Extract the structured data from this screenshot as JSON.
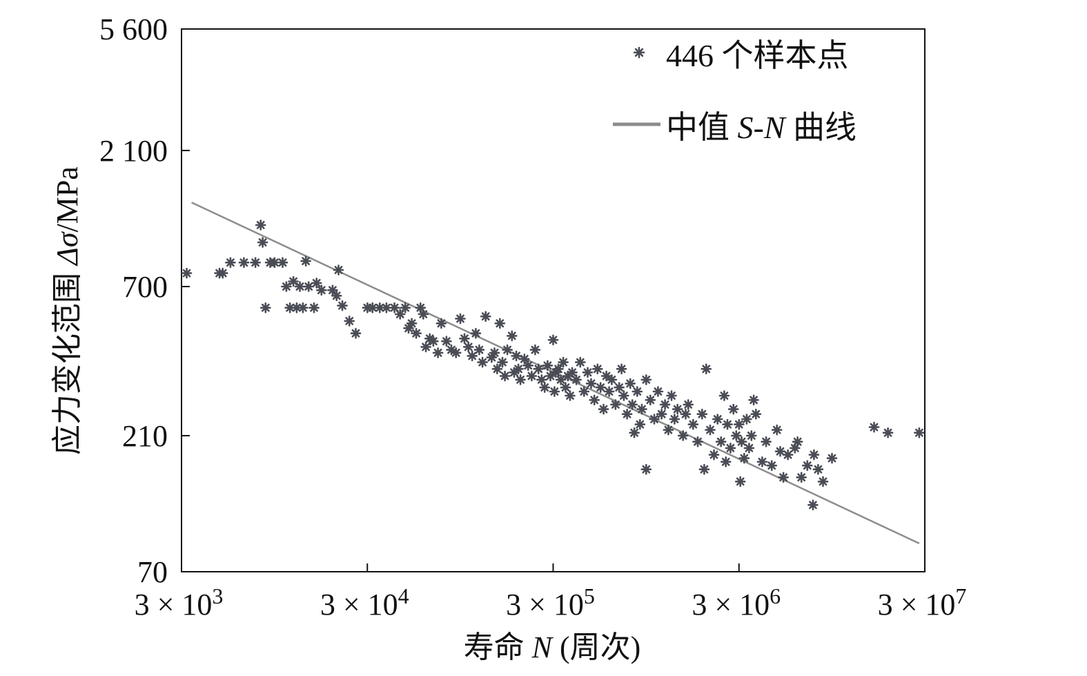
{
  "chart_data": {
    "type": "scatter",
    "title": "",
    "xlabel_prefix": "寿命",
    "xlabel_var": "N",
    "xlabel_suffix": "(周次)",
    "ylabel_prefix": "应力变化范围",
    "ylabel_var": "Δσ",
    "ylabel_suffix": "/MPa",
    "x_scale": "log",
    "y_scale": "log",
    "xlim": [
      3000,
      30000000
    ],
    "ylim": [
      70,
      5600
    ],
    "x_ticks": [
      {
        "value": 3000,
        "mantissa": "3 × 10",
        "exp": "3"
      },
      {
        "value": 30000,
        "mantissa": "3 × 10",
        "exp": "4"
      },
      {
        "value": 300000,
        "mantissa": "3 × 10",
        "exp": "5"
      },
      {
        "value": 3000000,
        "mantissa": "3 × 10",
        "exp": "6"
      },
      {
        "value": 30000000,
        "mantissa": "3 × 10",
        "exp": "7"
      }
    ],
    "y_ticks": [
      {
        "value": 5600,
        "label": "5 600"
      },
      {
        "value": 2100,
        "label": "2 100"
      },
      {
        "value": 700,
        "label": "700"
      },
      {
        "value": 210,
        "label": "210"
      },
      {
        "value": 70,
        "label": "70"
      }
    ],
    "legend": {
      "position": "top-right",
      "scatter_label": "446 个样本点",
      "line_label_prefix": "中值 ",
      "line_label_var": "S",
      "line_label_dash": "-",
      "line_label_var2": "N",
      "line_label_suffix": " 曲线"
    },
    "colors": {
      "points": "#4a4d55",
      "line": "#8c8c8c",
      "axes": "#111111"
    },
    "series": [
      {
        "name": "446 个样本点",
        "kind": "scatter",
        "marker": "star",
        "sample_count": 446,
        "points": [
          [
            3200,
            780
          ],
          [
            4800,
            780
          ],
          [
            5000,
            780
          ],
          [
            5500,
            850
          ],
          [
            6500,
            850
          ],
          [
            7500,
            850
          ],
          [
            8000,
            1150
          ],
          [
            8200,
            1000
          ],
          [
            8500,
            590
          ],
          [
            9000,
            850
          ],
          [
            9500,
            850
          ],
          [
            10500,
            850
          ],
          [
            11000,
            700
          ],
          [
            11500,
            590
          ],
          [
            12000,
            730
          ],
          [
            12500,
            590
          ],
          [
            13000,
            700
          ],
          [
            13500,
            590
          ],
          [
            14000,
            860
          ],
          [
            14500,
            700
          ],
          [
            15500,
            590
          ],
          [
            16000,
            720
          ],
          [
            17000,
            680
          ],
          [
            19500,
            680
          ],
          [
            20500,
            650
          ],
          [
            21000,
            800
          ],
          [
            22000,
            600
          ],
          [
            24000,
            530
          ],
          [
            26000,
            480
          ],
          [
            30000,
            590
          ],
          [
            32000,
            590
          ],
          [
            35000,
            590
          ],
          [
            38000,
            590
          ],
          [
            42000,
            590
          ],
          [
            45000,
            560
          ],
          [
            48000,
            590
          ],
          [
            50000,
            500
          ],
          [
            52000,
            520
          ],
          [
            55000,
            480
          ],
          [
            58000,
            590
          ],
          [
            60000,
            560
          ],
          [
            62000,
            430
          ],
          [
            65000,
            460
          ],
          [
            68000,
            450
          ],
          [
            72000,
            410
          ],
          [
            75000,
            520
          ],
          [
            80000,
            450
          ],
          [
            85000,
            420
          ],
          [
            90000,
            410
          ],
          [
            95000,
            540
          ],
          [
            100000,
            460
          ],
          [
            105000,
            430
          ],
          [
            110000,
            400
          ],
          [
            115000,
            480
          ],
          [
            120000,
            420
          ],
          [
            125000,
            380
          ],
          [
            130000,
            550
          ],
          [
            140000,
            395
          ],
          [
            145000,
            410
          ],
          [
            150000,
            360
          ],
          [
            155000,
            520
          ],
          [
            160000,
            380
          ],
          [
            165000,
            340
          ],
          [
            170000,
            420
          ],
          [
            180000,
            470
          ],
          [
            185000,
            350
          ],
          [
            190000,
            400
          ],
          [
            195000,
            360
          ],
          [
            200000,
            330
          ],
          [
            210000,
            390
          ],
          [
            220000,
            370
          ],
          [
            230000,
            340
          ],
          [
            240000,
            420
          ],
          [
            250000,
            360
          ],
          [
            260000,
            330
          ],
          [
            270000,
            310
          ],
          [
            280000,
            370
          ],
          [
            290000,
            340
          ],
          [
            300000,
            455
          ],
          [
            305000,
            300
          ],
          [
            310000,
            350
          ],
          [
            320000,
            360
          ],
          [
            330000,
            330
          ],
          [
            340000,
            380
          ],
          [
            350000,
            310
          ],
          [
            360000,
            340
          ],
          [
            370000,
            290
          ],
          [
            380000,
            350
          ],
          [
            400000,
            330
          ],
          [
            420000,
            380
          ],
          [
            440000,
            300
          ],
          [
            460000,
            350
          ],
          [
            480000,
            320
          ],
          [
            500000,
            280
          ],
          [
            520000,
            360
          ],
          [
            540000,
            310
          ],
          [
            560000,
            260
          ],
          [
            580000,
            340
          ],
          [
            600000,
            300
          ],
          [
            620000,
            330
          ],
          [
            650000,
            270
          ],
          [
            680000,
            310
          ],
          [
            700000,
            360
          ],
          [
            720000,
            290
          ],
          [
            750000,
            250
          ],
          [
            780000,
            320
          ],
          [
            800000,
            270
          ],
          [
            850000,
            300
          ],
          [
            880000,
            230
          ],
          [
            900000,
            260
          ],
          [
            950000,
            330
          ],
          [
            1000000,
            280
          ],
          [
            1050000,
            240
          ],
          [
            1100000,
            300
          ],
          [
            1150000,
            250
          ],
          [
            1200000,
            270
          ],
          [
            1250000,
            220
          ],
          [
            1300000,
            290
          ],
          [
            1350000,
            240
          ],
          [
            1400000,
            260
          ],
          [
            1500000,
            210
          ],
          [
            1550000,
            250
          ],
          [
            1600000,
            270
          ],
          [
            1700000,
            230
          ],
          [
            1800000,
            200
          ],
          [
            1900000,
            250
          ],
          [
            2000000,
            360
          ],
          [
            2100000,
            220
          ],
          [
            2200000,
            180
          ],
          [
            2300000,
            240
          ],
          [
            2400000,
            200
          ],
          [
            2500000,
            290
          ],
          [
            2600000,
            230
          ],
          [
            2700000,
            190
          ],
          [
            2800000,
            260
          ],
          [
            2900000,
            210
          ],
          [
            3000000,
            230
          ],
          [
            3100000,
            200
          ],
          [
            3200000,
            175
          ],
          [
            3300000,
            240
          ],
          [
            3400000,
            190
          ],
          [
            3500000,
            210
          ],
          [
            3700000,
            250
          ],
          [
            4000000,
            170
          ],
          [
            4200000,
            200
          ],
          [
            4500000,
            165
          ],
          [
            4800000,
            220
          ],
          [
            5000000,
            185
          ],
          [
            5200000,
            150
          ],
          [
            5500000,
            180
          ],
          [
            6000000,
            190
          ],
          [
            6500000,
            150
          ],
          [
            7000000,
            165
          ],
          [
            7500000,
            120
          ],
          [
            7600000,
            180
          ],
          [
            8000000,
            160
          ],
          [
            8500000,
            145
          ],
          [
            9500000,
            175
          ],
          [
            950000,
            160
          ],
          [
            820000,
            215
          ],
          [
            3050000,
            145
          ],
          [
            3600000,
            280
          ],
          [
            6200000,
            200
          ],
          [
            2550000,
            170
          ],
          [
            1950000,
            160
          ],
          [
            16000000,
            225
          ],
          [
            19000000,
            215
          ],
          [
            28000000,
            215
          ]
        ]
      },
      {
        "name": "中值 S-N 曲线",
        "kind": "line",
        "points": [
          [
            3400,
            1380
          ],
          [
            28000000,
            88
          ]
        ]
      }
    ]
  }
}
